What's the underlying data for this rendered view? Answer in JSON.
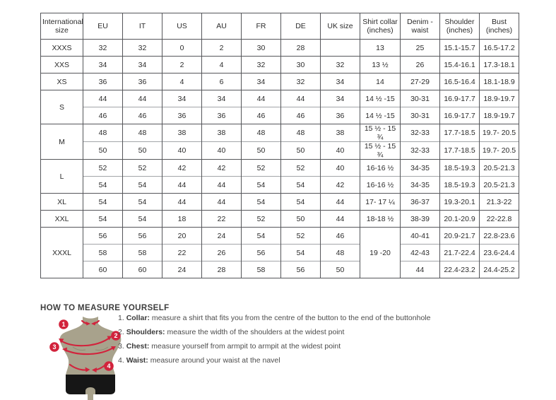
{
  "table": {
    "headers": [
      "International size",
      "EU",
      "IT",
      "US",
      "AU",
      "FR",
      "DE",
      "UK size",
      "Shirt collar (inches)",
      "Denim - waist",
      "Shoulder (inches)",
      "Bust (inches)"
    ],
    "rows": [
      {
        "cells": [
          {
            "t": "XXXS",
            "size": true
          },
          {
            "t": "32"
          },
          {
            "t": "32"
          },
          {
            "t": "0"
          },
          {
            "t": "2"
          },
          {
            "t": "30"
          },
          {
            "t": "28"
          },
          {
            "t": ""
          },
          {
            "t": "13"
          },
          {
            "t": "25"
          },
          {
            "t": "15.1-15.7"
          },
          {
            "t": "16.5-17.2"
          }
        ]
      },
      {
        "cells": [
          {
            "t": "XXS",
            "size": true
          },
          {
            "t": "34"
          },
          {
            "t": "34"
          },
          {
            "t": "2"
          },
          {
            "t": "4"
          },
          {
            "t": "32"
          },
          {
            "t": "30"
          },
          {
            "t": "32"
          },
          {
            "t": "13 ½"
          },
          {
            "t": "26"
          },
          {
            "t": "15.4-16.1"
          },
          {
            "t": "17.3-18.1"
          }
        ]
      },
      {
        "cells": [
          {
            "t": "XS",
            "size": true
          },
          {
            "t": "36"
          },
          {
            "t": "36"
          },
          {
            "t": "4"
          },
          {
            "t": "6"
          },
          {
            "t": "34"
          },
          {
            "t": "32"
          },
          {
            "t": "34"
          },
          {
            "t": "14"
          },
          {
            "t": "27-29"
          },
          {
            "t": "16.5-16.4"
          },
          {
            "t": "18.1-18.9"
          }
        ]
      },
      {
        "cells": [
          {
            "t": "S",
            "size": true,
            "rs": 2
          },
          {
            "t": "44"
          },
          {
            "t": "44"
          },
          {
            "t": "34"
          },
          {
            "t": "34"
          },
          {
            "t": "44"
          },
          {
            "t": "44"
          },
          {
            "t": "34"
          },
          {
            "t": "14 ½ -15"
          },
          {
            "t": "30-31"
          },
          {
            "t": "16.9-17.7"
          },
          {
            "t": "18.9-19.7"
          }
        ]
      },
      {
        "inner": true,
        "cells": [
          {
            "t": "46"
          },
          {
            "t": "46"
          },
          {
            "t": "36"
          },
          {
            "t": "36"
          },
          {
            "t": "46"
          },
          {
            "t": "46"
          },
          {
            "t": "36"
          },
          {
            "t": "14 ½ -15"
          },
          {
            "t": "30-31"
          },
          {
            "t": "16.9-17.7"
          },
          {
            "t": "18.9-19.7"
          }
        ]
      },
      {
        "cells": [
          {
            "t": "M",
            "size": true,
            "rs": 2
          },
          {
            "t": "48"
          },
          {
            "t": "48"
          },
          {
            "t": "38"
          },
          {
            "t": "38"
          },
          {
            "t": "48"
          },
          {
            "t": "48"
          },
          {
            "t": "38"
          },
          {
            "t": "15 ½ - 15 ¾"
          },
          {
            "t": "32-33"
          },
          {
            "t": "17.7-18.5"
          },
          {
            "t": "19.7- 20.5"
          }
        ]
      },
      {
        "inner": true,
        "cells": [
          {
            "t": "50"
          },
          {
            "t": "50"
          },
          {
            "t": "40"
          },
          {
            "t": "40"
          },
          {
            "t": "50"
          },
          {
            "t": "50"
          },
          {
            "t": "40"
          },
          {
            "t": "15 ½ - 15 ¾"
          },
          {
            "t": "32-33"
          },
          {
            "t": "17.7-18.5"
          },
          {
            "t": "19.7- 20.5"
          }
        ]
      },
      {
        "cells": [
          {
            "t": "L",
            "size": true,
            "rs": 2
          },
          {
            "t": "52"
          },
          {
            "t": "52"
          },
          {
            "t": "42"
          },
          {
            "t": "42"
          },
          {
            "t": "52"
          },
          {
            "t": "52"
          },
          {
            "t": "40"
          },
          {
            "t": "16-16 ½"
          },
          {
            "t": "34-35"
          },
          {
            "t": "18.5-19.3"
          },
          {
            "t": "20.5-21.3"
          }
        ]
      },
      {
        "inner": true,
        "cells": [
          {
            "t": "54"
          },
          {
            "t": "54"
          },
          {
            "t": "44"
          },
          {
            "t": "44"
          },
          {
            "t": "54"
          },
          {
            "t": "54"
          },
          {
            "t": "42"
          },
          {
            "t": "16-16 ½"
          },
          {
            "t": "34-35"
          },
          {
            "t": "18.5-19.3"
          },
          {
            "t": "20.5-21.3"
          }
        ]
      },
      {
        "cells": [
          {
            "t": "XL",
            "size": true
          },
          {
            "t": "54"
          },
          {
            "t": "54"
          },
          {
            "t": "44"
          },
          {
            "t": "44"
          },
          {
            "t": "54"
          },
          {
            "t": "54"
          },
          {
            "t": "44"
          },
          {
            "t": "17- 17 ¼"
          },
          {
            "t": "36-37"
          },
          {
            "t": "19.3-20.1"
          },
          {
            "t": "21.3-22"
          }
        ]
      },
      {
        "cells": [
          {
            "t": "XXL",
            "size": true
          },
          {
            "t": "54"
          },
          {
            "t": "54"
          },
          {
            "t": "18"
          },
          {
            "t": "22"
          },
          {
            "t": "52"
          },
          {
            "t": "50"
          },
          {
            "t": "44"
          },
          {
            "t": "18-18 ½"
          },
          {
            "t": "38-39"
          },
          {
            "t": "20.1-20.9"
          },
          {
            "t": "22-22.8"
          }
        ]
      },
      {
        "cells": [
          {
            "t": "XXXL",
            "size": true,
            "rs": 3
          },
          {
            "t": "56"
          },
          {
            "t": "56"
          },
          {
            "t": "20"
          },
          {
            "t": "24"
          },
          {
            "t": "54"
          },
          {
            "t": "52"
          },
          {
            "t": "46"
          },
          {
            "t": "19 -20",
            "rs": 3
          },
          {
            "t": "40-41"
          },
          {
            "t": "20.9-21.7"
          },
          {
            "t": "22.8-23.6"
          }
        ]
      },
      {
        "inner": true,
        "cells": [
          {
            "t": "58"
          },
          {
            "t": "58"
          },
          {
            "t": "22"
          },
          {
            "t": "26"
          },
          {
            "t": "56"
          },
          {
            "t": "54"
          },
          {
            "t": "48"
          },
          {
            "t": "42-43"
          },
          {
            "t": "21.7-22.4"
          },
          {
            "t": "23.6-24.4"
          }
        ]
      },
      {
        "inner": true,
        "cells": [
          {
            "t": "60"
          },
          {
            "t": "60"
          },
          {
            "t": "24"
          },
          {
            "t": "28"
          },
          {
            "t": "58"
          },
          {
            "t": "56"
          },
          {
            "t": "50"
          },
          {
            "t": "44"
          },
          {
            "t": "22.4-23.2"
          },
          {
            "t": "24.4-25.2"
          }
        ]
      }
    ]
  },
  "measure": {
    "heading": "HOW TO MEASURE YOURSELF",
    "items": [
      {
        "num": "1.",
        "label": "Collar:",
        "text": "measure a shirt that fits you from the centre of the button to the end of the buttonhole"
      },
      {
        "num": "2.",
        "label": "Shoulders:",
        "text": "measure the width of the shoulders at the widest point"
      },
      {
        "num": "3.",
        "label": "Chest:",
        "text": "measure yourself from armpit to armpit at the widest point"
      },
      {
        "num": "4.",
        "label": "Waist:",
        "text": "measure around your waist at the navel"
      }
    ],
    "figure": {
      "circle_labels": [
        "1",
        "2",
        "3",
        "4"
      ],
      "colors": {
        "accent_red": "#d2233c",
        "body": "#a8a28c",
        "shorts": "#161616"
      }
    }
  }
}
